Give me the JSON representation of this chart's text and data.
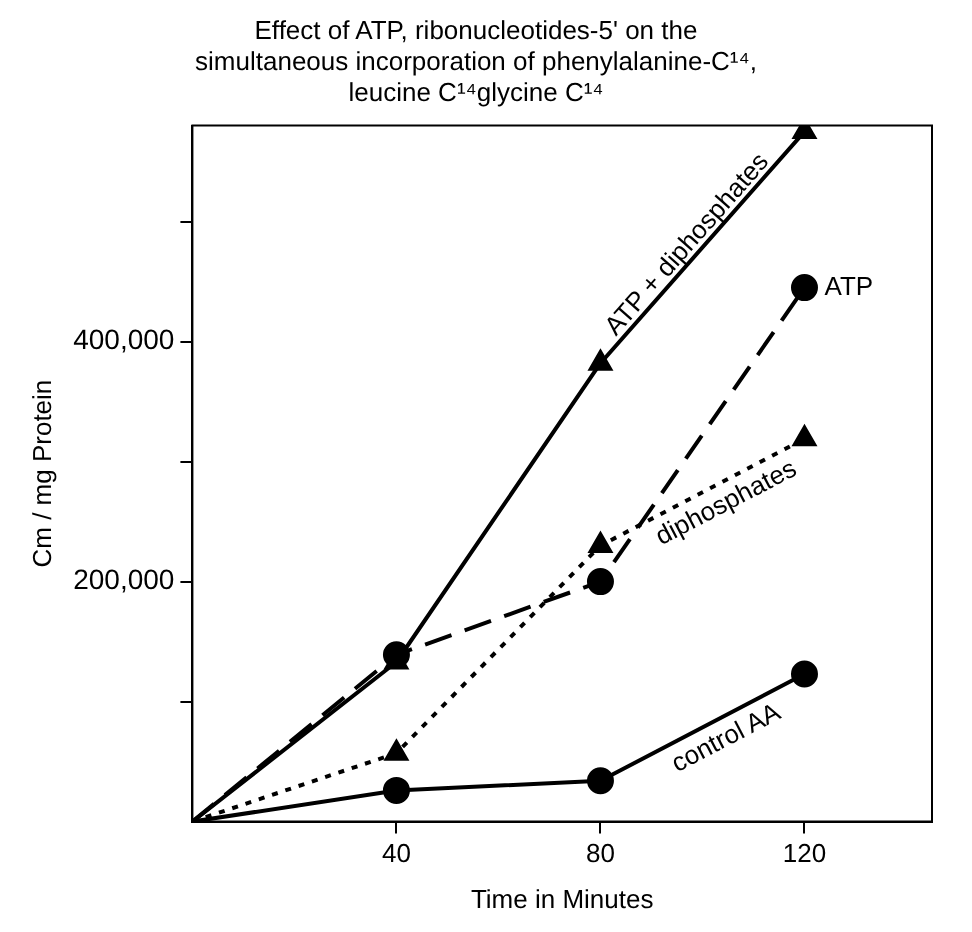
{
  "chart_data": {
    "type": "line",
    "title": "Effect of ATP, ribonucleotides-5' on the\nsimultaneous incorporation of phenylalanine-C¹⁴,\nleucine C¹⁴glycine C¹⁴",
    "xlabel": "Time in Minutes",
    "ylabel": "Cm / mg Protein",
    "x": [
      0,
      40,
      80,
      120
    ],
    "series": [
      {
        "name": "ATP + diphosphates",
        "color": "#000000",
        "values": [
          0,
          133000,
          382000,
          575000
        ],
        "marker": "triangle",
        "line_style": "solid"
      },
      {
        "name": "ATP",
        "color": "#000000",
        "values": [
          0,
          139000,
          200000,
          445000
        ],
        "marker": "circle",
        "line_style": "dashed"
      },
      {
        "name": "diphosphates",
        "color": "#000000",
        "values": [
          0,
          57000,
          230000,
          319000
        ],
        "marker": "triangle",
        "line_style": "dotted"
      },
      {
        "name": "control AA",
        "color": "#000000",
        "values": [
          0,
          26000,
          34000,
          123000
        ],
        "marker": "circle",
        "line_style": "solid"
      }
    ],
    "xlim": [
      0,
      145
    ],
    "xticks": [
      40,
      80,
      120
    ],
    "ylim": [
      0,
      580000
    ],
    "yticks": [
      {
        "value": 100000,
        "label": null
      },
      {
        "value": 200000,
        "label": "200,000"
      },
      {
        "value": 300000,
        "label": null
      },
      {
        "value": 400000,
        "label": "400,000"
      },
      {
        "value": 500000,
        "label": null
      }
    ],
    "grid": false,
    "legend": false
  }
}
